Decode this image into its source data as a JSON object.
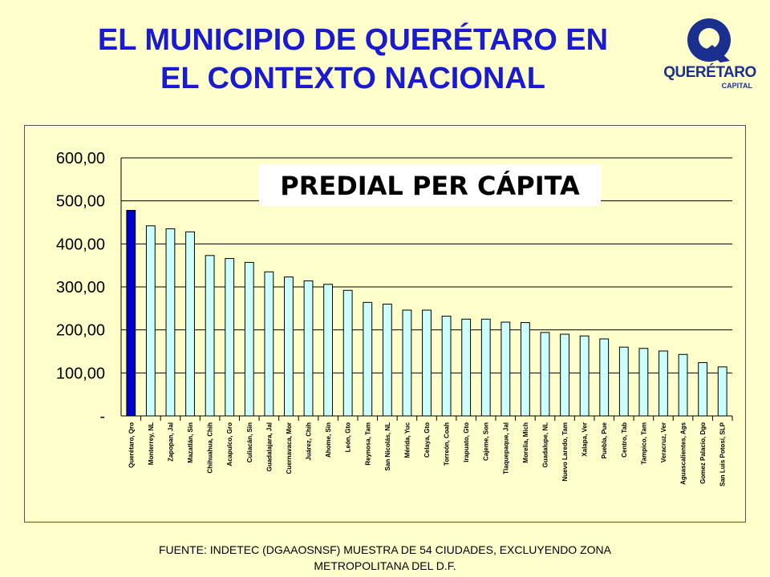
{
  "header": {
    "title_line1": "EL MUNICIPIO DE QUERÉTARO EN",
    "title_line2": "EL CONTEXTO NACIONAL"
  },
  "logo": {
    "icon": "queretaro-q-logo",
    "word": "QUERÉTARO",
    "sub": "CAPITAL"
  },
  "chart_data": {
    "type": "bar",
    "title": "PREDIAL PER CÁPITA",
    "categories": [
      "Querétaro, Qro",
      "Monterrey, NL",
      "Zapopan, Jal",
      "Mazatlán, Sin",
      "Chihuahua, Chih",
      "Acapulco, Gro",
      "Culiacán, Sin",
      "Guadalajara, Jal",
      "Cuernavaca, Mor",
      "Juárez, Chih",
      "Ahome, Sin",
      "León, Gto",
      "Reynosa, Tam",
      "San Nicolás, NL",
      "Mérida, Yuc",
      "Celaya, Gto",
      "Torreón, Coah",
      "Irapuato, Gto",
      "Cajeme, Son",
      "Tlaquepaque, Jal",
      "Morelia, Mich",
      "Guadalupe, NL",
      "Nuevo Laredo, Tam",
      "Xalapa, Ver",
      "Puebla, Pue",
      "Centro, Tab",
      "Tampico, Tam",
      "Veracruz, Ver",
      "Aguascalientes, Ags",
      "Gomez Palacio, Dgo",
      "San Luis Potosí, SLP"
    ],
    "values": [
      478,
      442,
      435,
      428,
      373,
      366,
      357,
      335,
      323,
      314,
      306,
      292,
      264,
      260,
      246,
      246,
      232,
      225,
      225,
      218,
      217,
      194,
      190,
      186,
      179,
      160,
      157,
      151,
      143,
      124,
      114
    ],
    "highlight_index": 0,
    "ylim": [
      0,
      600
    ],
    "yticks": [
      "-",
      "100,00",
      "200,00",
      "300,00",
      "400,00",
      "500,00",
      "600,00"
    ],
    "grid": true,
    "colors": {
      "highlight": "#0000cc",
      "bar": "#ccffff",
      "bar_stroke": "#000000",
      "grid": "#000000"
    }
  },
  "footer": {
    "line1": "FUENTE: INDETEC (DGAAOSNSF) MUESTRA DE 54 CIUDADES, EXCLUYENDO ZONA",
    "line2": "METROPOLITANA DEL D.F."
  }
}
